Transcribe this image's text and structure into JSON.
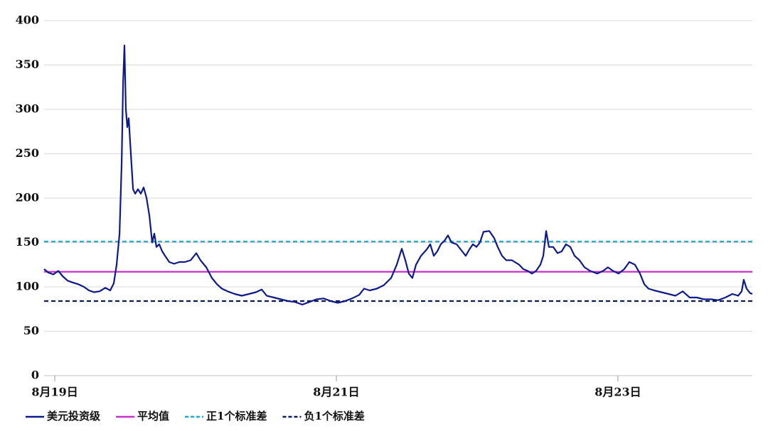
{
  "chart_data": {
    "type": "line",
    "x": [
      -0.076,
      -0.045,
      -0.01,
      0.025,
      0.056,
      0.091,
      0.126,
      0.167,
      0.207,
      0.242,
      0.278,
      0.318,
      0.359,
      0.394,
      0.419,
      0.439,
      0.46,
      0.475,
      0.485,
      0.495,
      0.505,
      0.515,
      0.525,
      0.54,
      0.556,
      0.571,
      0.591,
      0.611,
      0.631,
      0.652,
      0.672,
      0.692,
      0.707,
      0.722,
      0.742,
      0.763,
      0.783,
      0.813,
      0.848,
      0.884,
      0.924,
      0.965,
      1.005,
      1.035,
      1.076,
      1.116,
      1.152,
      1.187,
      1.227,
      1.278,
      1.328,
      1.379,
      1.429,
      1.47,
      1.505,
      1.556,
      1.606,
      1.657,
      1.707,
      1.758,
      1.808,
      1.859,
      1.909,
      1.96,
      2.01,
      2.061,
      2.111,
      2.162,
      2.197,
      2.237,
      2.288,
      2.338,
      2.389,
      2.429,
      2.465,
      2.49,
      2.515,
      2.54,
      2.566,
      2.601,
      2.641,
      2.667,
      2.692,
      2.717,
      2.742,
      2.768,
      2.793,
      2.818,
      2.854,
      2.894,
      2.919,
      2.944,
      2.97,
      2.995,
      3.02,
      3.045,
      3.086,
      3.121,
      3.146,
      3.177,
      3.207,
      3.247,
      3.298,
      3.328,
      3.359,
      3.389,
      3.419,
      3.449,
      3.47,
      3.49,
      3.51,
      3.54,
      3.571,
      3.601,
      3.631,
      3.662,
      3.692,
      3.727,
      3.763,
      3.803,
      3.854,
      3.894,
      3.929,
      3.965,
      4.005,
      4.045,
      4.081,
      4.121,
      4.157,
      4.187,
      4.217,
      4.258,
      4.308,
      4.359,
      4.409,
      4.46,
      4.51,
      4.561,
      4.611,
      4.662,
      4.712,
      4.763,
      4.813,
      4.854,
      4.879,
      4.894,
      4.914,
      4.939,
      4.955
    ],
    "series": [
      {
        "name": "美元投资级",
        "color": "#0d1a8c",
        "values": [
          120,
          116,
          114,
          118,
          112,
          107,
          105,
          103,
          100,
          96,
          94,
          95,
          99,
          96,
          104,
          125,
          160,
          240,
          330,
          372,
          300,
          280,
          290,
          250,
          210,
          205,
          210,
          205,
          212,
          200,
          180,
          150,
          160,
          145,
          148,
          140,
          135,
          128,
          126,
          128,
          128,
          130,
          138,
          130,
          122,
          110,
          103,
          98,
          95,
          92,
          90,
          92,
          94,
          97,
          90,
          88,
          86,
          84,
          83,
          80,
          83,
          86,
          87,
          84,
          82,
          84,
          87,
          91,
          98,
          96,
          98,
          102,
          110,
          125,
          143,
          130,
          115,
          110,
          125,
          135,
          142,
          148,
          135,
          140,
          148,
          152,
          158,
          150,
          148,
          140,
          135,
          142,
          148,
          145,
          150,
          162,
          163,
          155,
          145,
          135,
          130,
          130,
          125,
          120,
          118,
          115,
          118,
          125,
          135,
          163,
          145,
          145,
          138,
          140,
          148,
          145,
          135,
          130,
          122,
          118,
          115,
          118,
          122,
          118,
          115,
          120,
          128,
          125,
          115,
          103,
          98,
          96,
          94,
          92,
          90,
          95,
          88,
          88,
          86,
          86,
          85,
          88,
          92,
          90,
          95,
          108,
          98,
          93,
          92
        ]
      }
    ],
    "reference_lines": [
      {
        "name": "平均值",
        "color": "#c832c8",
        "value": 117,
        "dashed": false
      },
      {
        "name": "正1个标准差",
        "color": "#2aa6c8",
        "value": 151,
        "dashed": true
      },
      {
        "name": "负1个标准差",
        "color": "#0d1a5c",
        "value": 84,
        "dashed": true
      }
    ],
    "xlim": [
      -0.076,
      4.955
    ],
    "xticks": [
      {
        "value": 0,
        "label": "8月19日"
      },
      {
        "value": 2,
        "label": "8月21日"
      },
      {
        "value": 4,
        "label": "8月23日"
      }
    ],
    "ylim": [
      0,
      400
    ],
    "yticks": [
      0,
      50,
      100,
      150,
      200,
      250,
      300,
      350,
      400
    ],
    "grid": true,
    "legend": "bottom"
  }
}
